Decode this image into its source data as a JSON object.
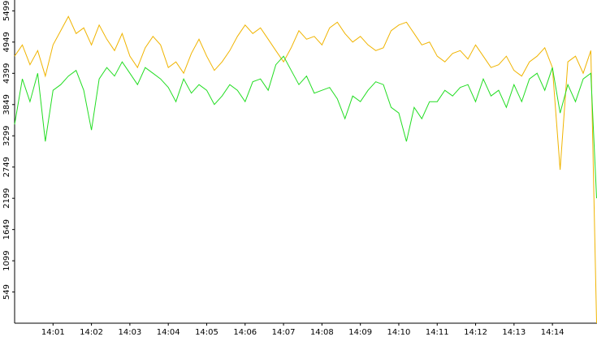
{
  "chart_data": {
    "type": "line",
    "x": [
      0,
      0.2,
      0.4,
      0.6,
      0.8,
      1,
      1.2,
      1.4,
      1.6,
      1.8,
      2,
      2.2,
      2.4,
      2.6,
      2.8,
      3,
      3.2,
      3.4,
      3.6,
      3.8,
      4,
      4.2,
      4.4,
      4.6,
      4.8,
      5,
      5.2,
      5.4,
      5.6,
      5.8,
      6,
      6.2,
      6.4,
      6.6,
      6.8,
      7,
      7.2,
      7.4,
      7.6,
      7.8,
      8,
      8.2,
      8.4,
      8.6,
      8.8,
      9,
      9.2,
      9.4,
      9.6,
      9.8,
      10,
      10.2,
      10.4,
      10.6,
      10.8,
      11,
      11.2,
      11.4,
      11.6,
      11.8,
      12,
      12.2,
      12.4,
      12.6,
      12.8,
      13,
      13.2,
      13.4,
      13.6,
      13.8,
      14,
      14.2,
      14.4,
      14.6,
      14.8,
      15,
      15.15
    ],
    "series": [
      {
        "color": "#f0b400",
        "values": [
          4700,
          4900,
          4550,
          4800,
          4350,
          4900,
          5150,
          5400,
          5100,
          5200,
          4900,
          5250,
          5000,
          4800,
          5100,
          4700,
          4500,
          4850,
          5050,
          4900,
          4500,
          4600,
          4400,
          4750,
          5000,
          4700,
          4450,
          4600,
          4800,
          5050,
          5250,
          5100,
          5200,
          5000,
          4800,
          4600,
          4850,
          5150,
          5000,
          5050,
          4900,
          5200,
          5300,
          5100,
          4950,
          5050,
          4900,
          4800,
          4850,
          5150,
          5250,
          5300,
          5100,
          4900,
          4950,
          4700,
          4600,
          4750,
          4800,
          4650,
          4900,
          4700,
          4500,
          4550,
          4700,
          4450,
          4350,
          4600,
          4700,
          4850,
          4500,
          2700,
          4600,
          4700,
          4400,
          4800,
          0
        ]
      },
      {
        "color": "#22dd22",
        "values": [
          3500,
          4300,
          3900,
          4400,
          3200,
          4100,
          4200,
          4350,
          4450,
          4100,
          3400,
          4300,
          4500,
          4350,
          4600,
          4400,
          4200,
          4500,
          4400,
          4300,
          4150,
          3900,
          4300,
          4050,
          4200,
          4100,
          3850,
          4000,
          4200,
          4100,
          3900,
          4250,
          4300,
          4100,
          4550,
          4700,
          4450,
          4200,
          4350,
          4050,
          4100,
          4150,
          3950,
          3600,
          4000,
          3900,
          4100,
          4250,
          4200,
          3800,
          3700,
          3200,
          3800,
          3600,
          3900,
          3900,
          4100,
          4000,
          4150,
          4200,
          3900,
          4300,
          4000,
          4100,
          3800,
          4200,
          3900,
          4300,
          4400,
          4100,
          4500,
          3700,
          4200,
          3900,
          4300,
          4400,
          2200
        ]
      }
    ],
    "xlim": [
      0,
      15.16
    ],
    "ylim": [
      0,
      5690
    ],
    "yticks": [
      549,
      1099,
      1649,
      2199,
      2749,
      3299,
      3849,
      4399,
      4949,
      5499
    ],
    "xticks": [
      {
        "value": 1,
        "label": "14:01"
      },
      {
        "value": 2,
        "label": "14:02"
      },
      {
        "value": 3,
        "label": "14:03"
      },
      {
        "value": 4,
        "label": "14:04"
      },
      {
        "value": 5,
        "label": "14:05"
      },
      {
        "value": 6,
        "label": "14:06"
      },
      {
        "value": 7,
        "label": "14:07"
      },
      {
        "value": 8,
        "label": "14:08"
      },
      {
        "value": 9,
        "label": "14:09"
      },
      {
        "value": 10,
        "label": "14:10"
      },
      {
        "value": 11,
        "label": "14:11"
      },
      {
        "value": 12,
        "label": "14:12"
      },
      {
        "value": 13,
        "label": "14:13"
      },
      {
        "value": 14,
        "label": "14:14"
      }
    ]
  }
}
